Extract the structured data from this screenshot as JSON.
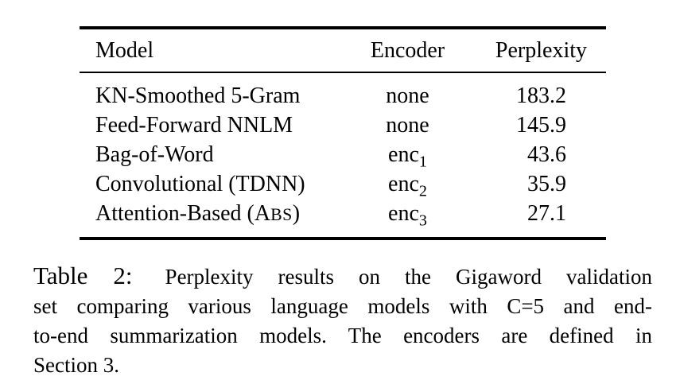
{
  "page": {
    "background_color": "#ffffff",
    "text_color": "#000000"
  },
  "table": {
    "columns": [
      "Model",
      "Encoder",
      "Perplexity"
    ],
    "rows": [
      {
        "model": {
          "prefix": "KN-Smoothed 5-Gram",
          "smallcaps": "",
          "suffix": ""
        },
        "encoder": {
          "base": "none",
          "sub": ""
        },
        "perplexity": "183.2"
      },
      {
        "model": {
          "prefix": "Feed-Forward NNLM",
          "smallcaps": "",
          "suffix": ""
        },
        "encoder": {
          "base": "none",
          "sub": ""
        },
        "perplexity": "145.9"
      },
      {
        "model": {
          "prefix": "Bag-of-Word",
          "smallcaps": "",
          "suffix": ""
        },
        "encoder": {
          "base": "enc",
          "sub": "1"
        },
        "perplexity": "43.6"
      },
      {
        "model": {
          "prefix": "Convolutional (TDNN)",
          "smallcaps": "",
          "suffix": ""
        },
        "encoder": {
          "base": "enc",
          "sub": "2"
        },
        "perplexity": "35.9"
      },
      {
        "model": {
          "prefix": "Attention-Based (A",
          "smallcaps": "BS",
          "suffix": ")"
        },
        "encoder": {
          "base": "enc",
          "sub": "3"
        },
        "perplexity": "27.1"
      }
    ]
  },
  "caption": {
    "label": "Table 2:",
    "lines": [
      "Perplexity results on the Gigaword validation",
      "set comparing various language models with C=5 and end-",
      "to-end summarization models.  The encoders are defined in",
      "Section 3."
    ]
  }
}
